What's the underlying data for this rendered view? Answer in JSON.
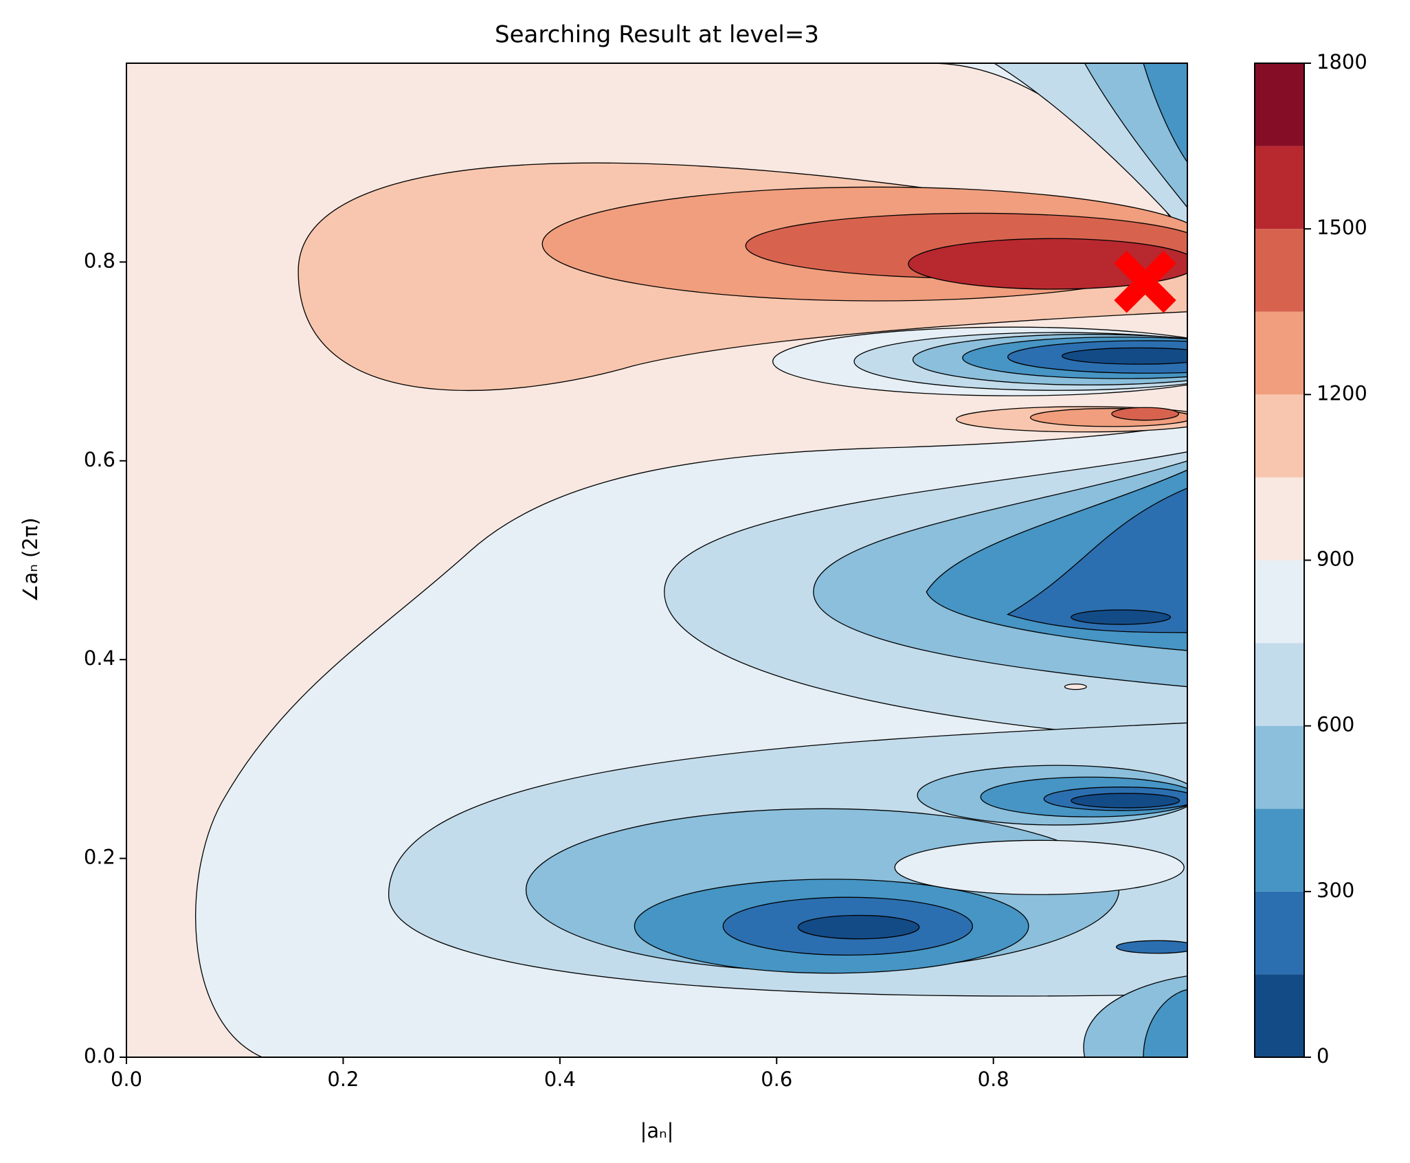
{
  "chart_data": {
    "type": "contour",
    "title": "Searching Result at level=3",
    "x_label": "|aₙ|",
    "y_label": "∠aₙ  (2π)",
    "xlim": [
      0,
      0.979
    ],
    "ylim": [
      0,
      1.0
    ],
    "xticks": [
      {
        "value": 0,
        "label": "0.0"
      },
      0.2,
      0.4,
      0.6,
      0.8
    ],
    "yticks": [
      {
        "value": 0,
        "label": "0.0"
      },
      0.2,
      0.4,
      0.6,
      0.8
    ],
    "levels": [
      0,
      150,
      300,
      450,
      600,
      750,
      900,
      1050,
      1200,
      1350,
      1500,
      1650,
      1800
    ],
    "colors": [
      "#134b87",
      "#2c6fb0",
      "#4695c4",
      "#8bbfdc",
      "#c3dceb",
      "#e6eff5",
      "#f8e8e1",
      "#f8c6ae",
      "#f09e7d",
      "#d7634f",
      "#b8282f",
      "#850e26"
    ],
    "colorbar_ticks": [
      0,
      300,
      600,
      900,
      1200,
      1500,
      1800
    ],
    "marker": {
      "x": 0.94,
      "y": 0.78,
      "color": "#ff0000"
    }
  }
}
